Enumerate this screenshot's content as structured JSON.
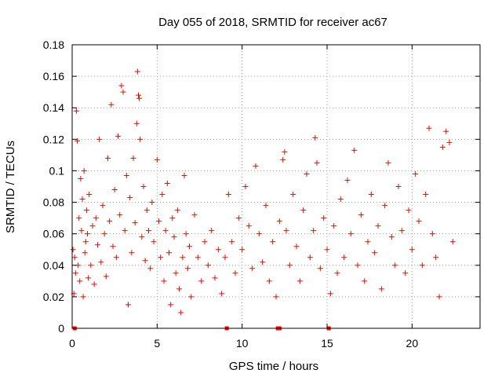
{
  "chart_data": {
    "type": "scatter",
    "title": "Day 055 of 2018, SRMTID for receiver ac67",
    "xlabel": "GPS time / hours",
    "ylabel": "SRMTID / TECUs",
    "xlim": [
      0,
      24
    ],
    "ylim": [
      0,
      0.18
    ],
    "xticks": [
      0,
      5,
      10,
      15,
      20
    ],
    "xtick_labels": [
      "0",
      "5",
      "10",
      "15",
      "20"
    ],
    "yticks": [
      0,
      0.02,
      0.04,
      0.06,
      0.08,
      0.1,
      0.12,
      0.14,
      0.16,
      0.18
    ],
    "ytick_labels": [
      "0",
      "0.02",
      "0.04",
      "0.06",
      "0.08",
      "0.1",
      "0.12",
      "0.14",
      "0.16",
      "0.18"
    ],
    "grid": true,
    "marker": "plus",
    "color": "#ff0000",
    "series": [
      {
        "name": "SRMTID",
        "points": [
          [
            0.05,
            0.05
          ],
          [
            0.1,
            0.022
          ],
          [
            0.15,
            0.045
          ],
          [
            0.2,
            0.035
          ],
          [
            0.25,
            0.138
          ],
          [
            0.3,
            0.119
          ],
          [
            0.35,
            0.04
          ],
          [
            0.4,
            0.07
          ],
          [
            0.45,
            0.03
          ],
          [
            0.5,
            0.095
          ],
          [
            0.55,
            0.062
          ],
          [
            0.6,
            0.082
          ],
          [
            0.65,
            0.02
          ],
          [
            0.7,
            0.1
          ],
          [
            0.75,
            0.048
          ],
          [
            0.8,
            0.055
          ],
          [
            0.85,
            0.075
          ],
          [
            0.9,
            0.06
          ],
          [
            0.95,
            0.032
          ],
          [
            1.0,
            0.085
          ],
          [
            1.1,
            0.04
          ],
          [
            1.2,
            0.065
          ],
          [
            1.3,
            0.028
          ],
          [
            1.4,
            0.07
          ],
          [
            1.5,
            0.053
          ],
          [
            1.6,
            0.12
          ],
          [
            1.7,
            0.042
          ],
          [
            1.8,
            0.078
          ],
          [
            1.9,
            0.06
          ],
          [
            2.0,
            0.033
          ],
          [
            2.1,
            0.108
          ],
          [
            2.2,
            0.068
          ],
          [
            2.3,
            0.142
          ],
          [
            2.4,
            0.052
          ],
          [
            2.5,
            0.088
          ],
          [
            2.6,
            0.045
          ],
          [
            2.7,
            0.122
          ],
          [
            2.8,
            0.072
          ],
          [
            2.9,
            0.154
          ],
          [
            3.0,
            0.15
          ],
          [
            3.1,
            0.062
          ],
          [
            3.2,
            0.097
          ],
          [
            3.3,
            0.015
          ],
          [
            3.4,
            0.083
          ],
          [
            3.5,
            0.048
          ],
          [
            3.6,
            0.108
          ],
          [
            3.7,
            0.067
          ],
          [
            3.8,
            0.13
          ],
          [
            3.85,
            0.163
          ],
          [
            3.9,
            0.148
          ],
          [
            3.95,
            0.146
          ],
          [
            4.0,
            0.12
          ],
          [
            4.1,
            0.058
          ],
          [
            4.2,
            0.09
          ],
          [
            4.3,
            0.043
          ],
          [
            4.4,
            0.075
          ],
          [
            4.5,
            0.062
          ],
          [
            4.6,
            0.038
          ],
          [
            4.7,
            0.08
          ],
          [
            4.8,
            0.055
          ],
          [
            5.0,
            0.107
          ],
          [
            5.1,
            0.068
          ],
          [
            5.2,
            0.045
          ],
          [
            5.3,
            0.085
          ],
          [
            5.4,
            0.03
          ],
          [
            5.5,
            0.062
          ],
          [
            5.6,
            0.092
          ],
          [
            5.7,
            0.048
          ],
          [
            5.8,
            0.015
          ],
          [
            5.9,
            0.07
          ],
          [
            6.0,
            0.058
          ],
          [
            6.1,
            0.035
          ],
          [
            6.2,
            0.075
          ],
          [
            6.3,
            0.025
          ],
          [
            6.4,
            0.01
          ],
          [
            6.5,
            0.045
          ],
          [
            6.6,
            0.097
          ],
          [
            6.7,
            0.06
          ],
          [
            6.8,
            0.038
          ],
          [
            6.9,
            0.052
          ],
          [
            7.0,
            0.02
          ],
          [
            7.2,
            0.072
          ],
          [
            7.4,
            0.045
          ],
          [
            7.6,
            0.03
          ],
          [
            7.8,
            0.055
          ],
          [
            8.0,
            0.04
          ],
          [
            8.2,
            0.062
          ],
          [
            8.4,
            0.032
          ],
          [
            8.6,
            0.05
          ],
          [
            8.8,
            0.022
          ],
          [
            9.0,
            0.045
          ],
          [
            9.2,
            0.085
          ],
          [
            9.4,
            0.055
          ],
          [
            9.6,
            0.035
          ],
          [
            9.8,
            0.07
          ],
          [
            10.0,
            0.05
          ],
          [
            10.2,
            0.09
          ],
          [
            10.4,
            0.065
          ],
          [
            10.6,
            0.038
          ],
          [
            10.8,
            0.103
          ],
          [
            11.0,
            0.06
          ],
          [
            11.2,
            0.042
          ],
          [
            11.4,
            0.078
          ],
          [
            11.6,
            0.03
          ],
          [
            11.8,
            0.055
          ],
          [
            12.0,
            0.02
          ],
          [
            12.2,
            0.068
          ],
          [
            12.4,
            0.107
          ],
          [
            12.5,
            0.112
          ],
          [
            12.6,
            0.062
          ],
          [
            12.8,
            0.04
          ],
          [
            13.0,
            0.085
          ],
          [
            13.2,
            0.052
          ],
          [
            13.4,
            0.03
          ],
          [
            13.6,
            0.075
          ],
          [
            13.8,
            0.098
          ],
          [
            14.0,
            0.045
          ],
          [
            14.2,
            0.062
          ],
          [
            14.3,
            0.121
          ],
          [
            14.4,
            0.105
          ],
          [
            14.6,
            0.038
          ],
          [
            14.8,
            0.07
          ],
          [
            15.0,
            0.05
          ],
          [
            15.2,
            0.022
          ],
          [
            15.4,
            0.065
          ],
          [
            15.6,
            0.035
          ],
          [
            15.8,
            0.082
          ],
          [
            16.0,
            0.045
          ],
          [
            16.2,
            0.094
          ],
          [
            16.4,
            0.06
          ],
          [
            16.6,
            0.113
          ],
          [
            16.8,
            0.04
          ],
          [
            17.0,
            0.072
          ],
          [
            17.2,
            0.03
          ],
          [
            17.4,
            0.055
          ],
          [
            17.6,
            0.085
          ],
          [
            17.8,
            0.048
          ],
          [
            18.0,
            0.065
          ],
          [
            18.2,
            0.025
          ],
          [
            18.4,
            0.078
          ],
          [
            18.6,
            0.105
          ],
          [
            18.8,
            0.058
          ],
          [
            19.0,
            0.04
          ],
          [
            19.2,
            0.09
          ],
          [
            19.4,
            0.062
          ],
          [
            19.6,
            0.035
          ],
          [
            19.8,
            0.075
          ],
          [
            20.0,
            0.05
          ],
          [
            20.2,
            0.098
          ],
          [
            20.4,
            0.068
          ],
          [
            20.6,
            0.04
          ],
          [
            20.8,
            0.085
          ],
          [
            21.0,
            0.127
          ],
          [
            21.2,
            0.06
          ],
          [
            21.4,
            0.045
          ],
          [
            21.6,
            0.02
          ],
          [
            21.8,
            0.115
          ],
          [
            22.0,
            0.125
          ],
          [
            22.2,
            0.118
          ],
          [
            22.4,
            0.055
          ]
        ]
      }
    ],
    "markers_at_zero": [
      0.15,
      9.1,
      12.1,
      12.2,
      15.1
    ]
  }
}
